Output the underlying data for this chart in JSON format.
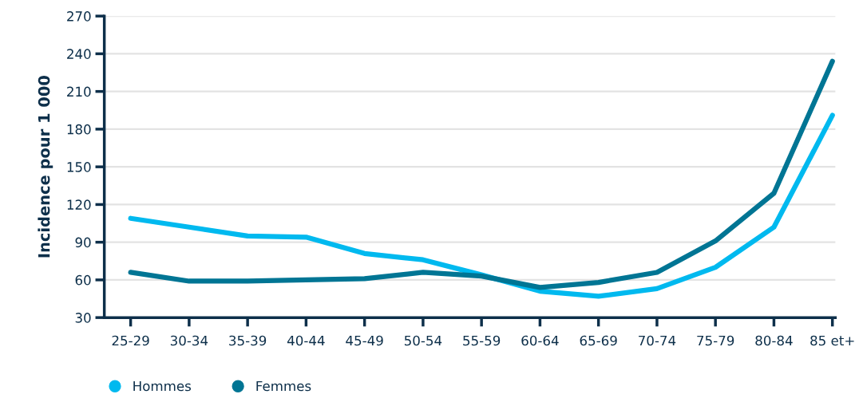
{
  "chart_data": {
    "type": "line",
    "ylabel": "Incidence pour 1 000",
    "categories": [
      "25-29",
      "30-34",
      "35-39",
      "40-44",
      "45-49",
      "50-54",
      "55-59",
      "60-64",
      "65-69",
      "70-74",
      "75-79",
      "80-84",
      "85 et+"
    ],
    "series": [
      {
        "name": "Hommes",
        "color": "#00b9ef",
        "values": [
          109,
          102,
          95,
          94,
          81,
          76,
          64,
          51,
          47,
          53,
          70,
          102,
          191
        ]
      },
      {
        "name": "Femmes",
        "color": "#007594",
        "values": [
          66,
          59,
          59,
          60,
          61,
          66,
          63,
          54,
          58,
          66,
          91,
          129,
          234
        ]
      }
    ],
    "ylim": [
      30,
      270
    ],
    "yticks": [
      30,
      60,
      90,
      120,
      150,
      180,
      210,
      240,
      270
    ],
    "grid": "y",
    "legend": "bottom left",
    "marker": "none",
    "line_style": "solid"
  }
}
